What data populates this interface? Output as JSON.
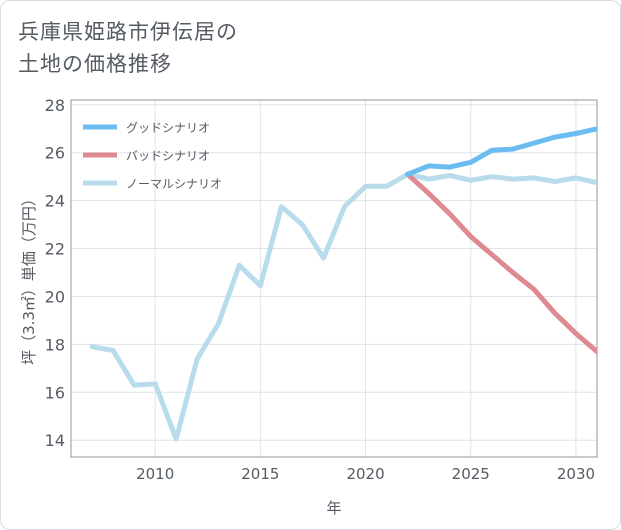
{
  "title_lines": [
    "兵庫県姫路市伊伝居の",
    "土地の価格推移"
  ],
  "chart_data": {
    "type": "line",
    "title": "兵庫県姫路市伊伝居の土地の価格推移",
    "xlabel": "年",
    "ylabel": "坪（3.3㎡）単価（万円）",
    "xlim": [
      2006,
      2031
    ],
    "ylim": [
      13.3,
      28.2
    ],
    "xticks": [
      2010,
      2015,
      2020,
      2025,
      2030
    ],
    "yticks": [
      14,
      16,
      18,
      20,
      22,
      24,
      26,
      28
    ],
    "grid": true,
    "legend_position": "top-left",
    "series": [
      {
        "name": "グッドシナリオ",
        "color": "#6bbcf0",
        "x": [
          2022,
          2023,
          2024,
          2025,
          2026,
          2027,
          2028,
          2029,
          2030,
          2031
        ],
        "values": [
          25.1,
          25.45,
          25.4,
          25.6,
          26.1,
          26.15,
          26.4,
          26.65,
          26.8,
          27.0
        ]
      },
      {
        "name": "バッドシナリオ",
        "color": "#df8a92",
        "x": [
          2022,
          2023,
          2024,
          2025,
          2026,
          2027,
          2028,
          2029,
          2030,
          2031
        ],
        "values": [
          25.1,
          24.3,
          23.45,
          22.5,
          21.75,
          21.0,
          20.3,
          19.3,
          18.45,
          17.7
        ]
      },
      {
        "name": "ノーマルシナリオ",
        "color": "#b9dcec",
        "x": [
          2007,
          2008,
          2009,
          2010,
          2011,
          2012,
          2013,
          2014,
          2015,
          2016,
          2017,
          2018,
          2019,
          2020,
          2021,
          2022,
          2023,
          2024,
          2025,
          2026,
          2027,
          2028,
          2029,
          2030,
          2031
        ],
        "values": [
          17.9,
          17.75,
          16.3,
          16.35,
          14.05,
          17.4,
          18.85,
          21.3,
          20.45,
          23.75,
          23.0,
          21.6,
          23.75,
          24.6,
          24.6,
          25.1,
          24.9,
          25.05,
          24.85,
          25.0,
          24.9,
          24.95,
          24.8,
          24.95,
          24.75
        ]
      }
    ]
  }
}
